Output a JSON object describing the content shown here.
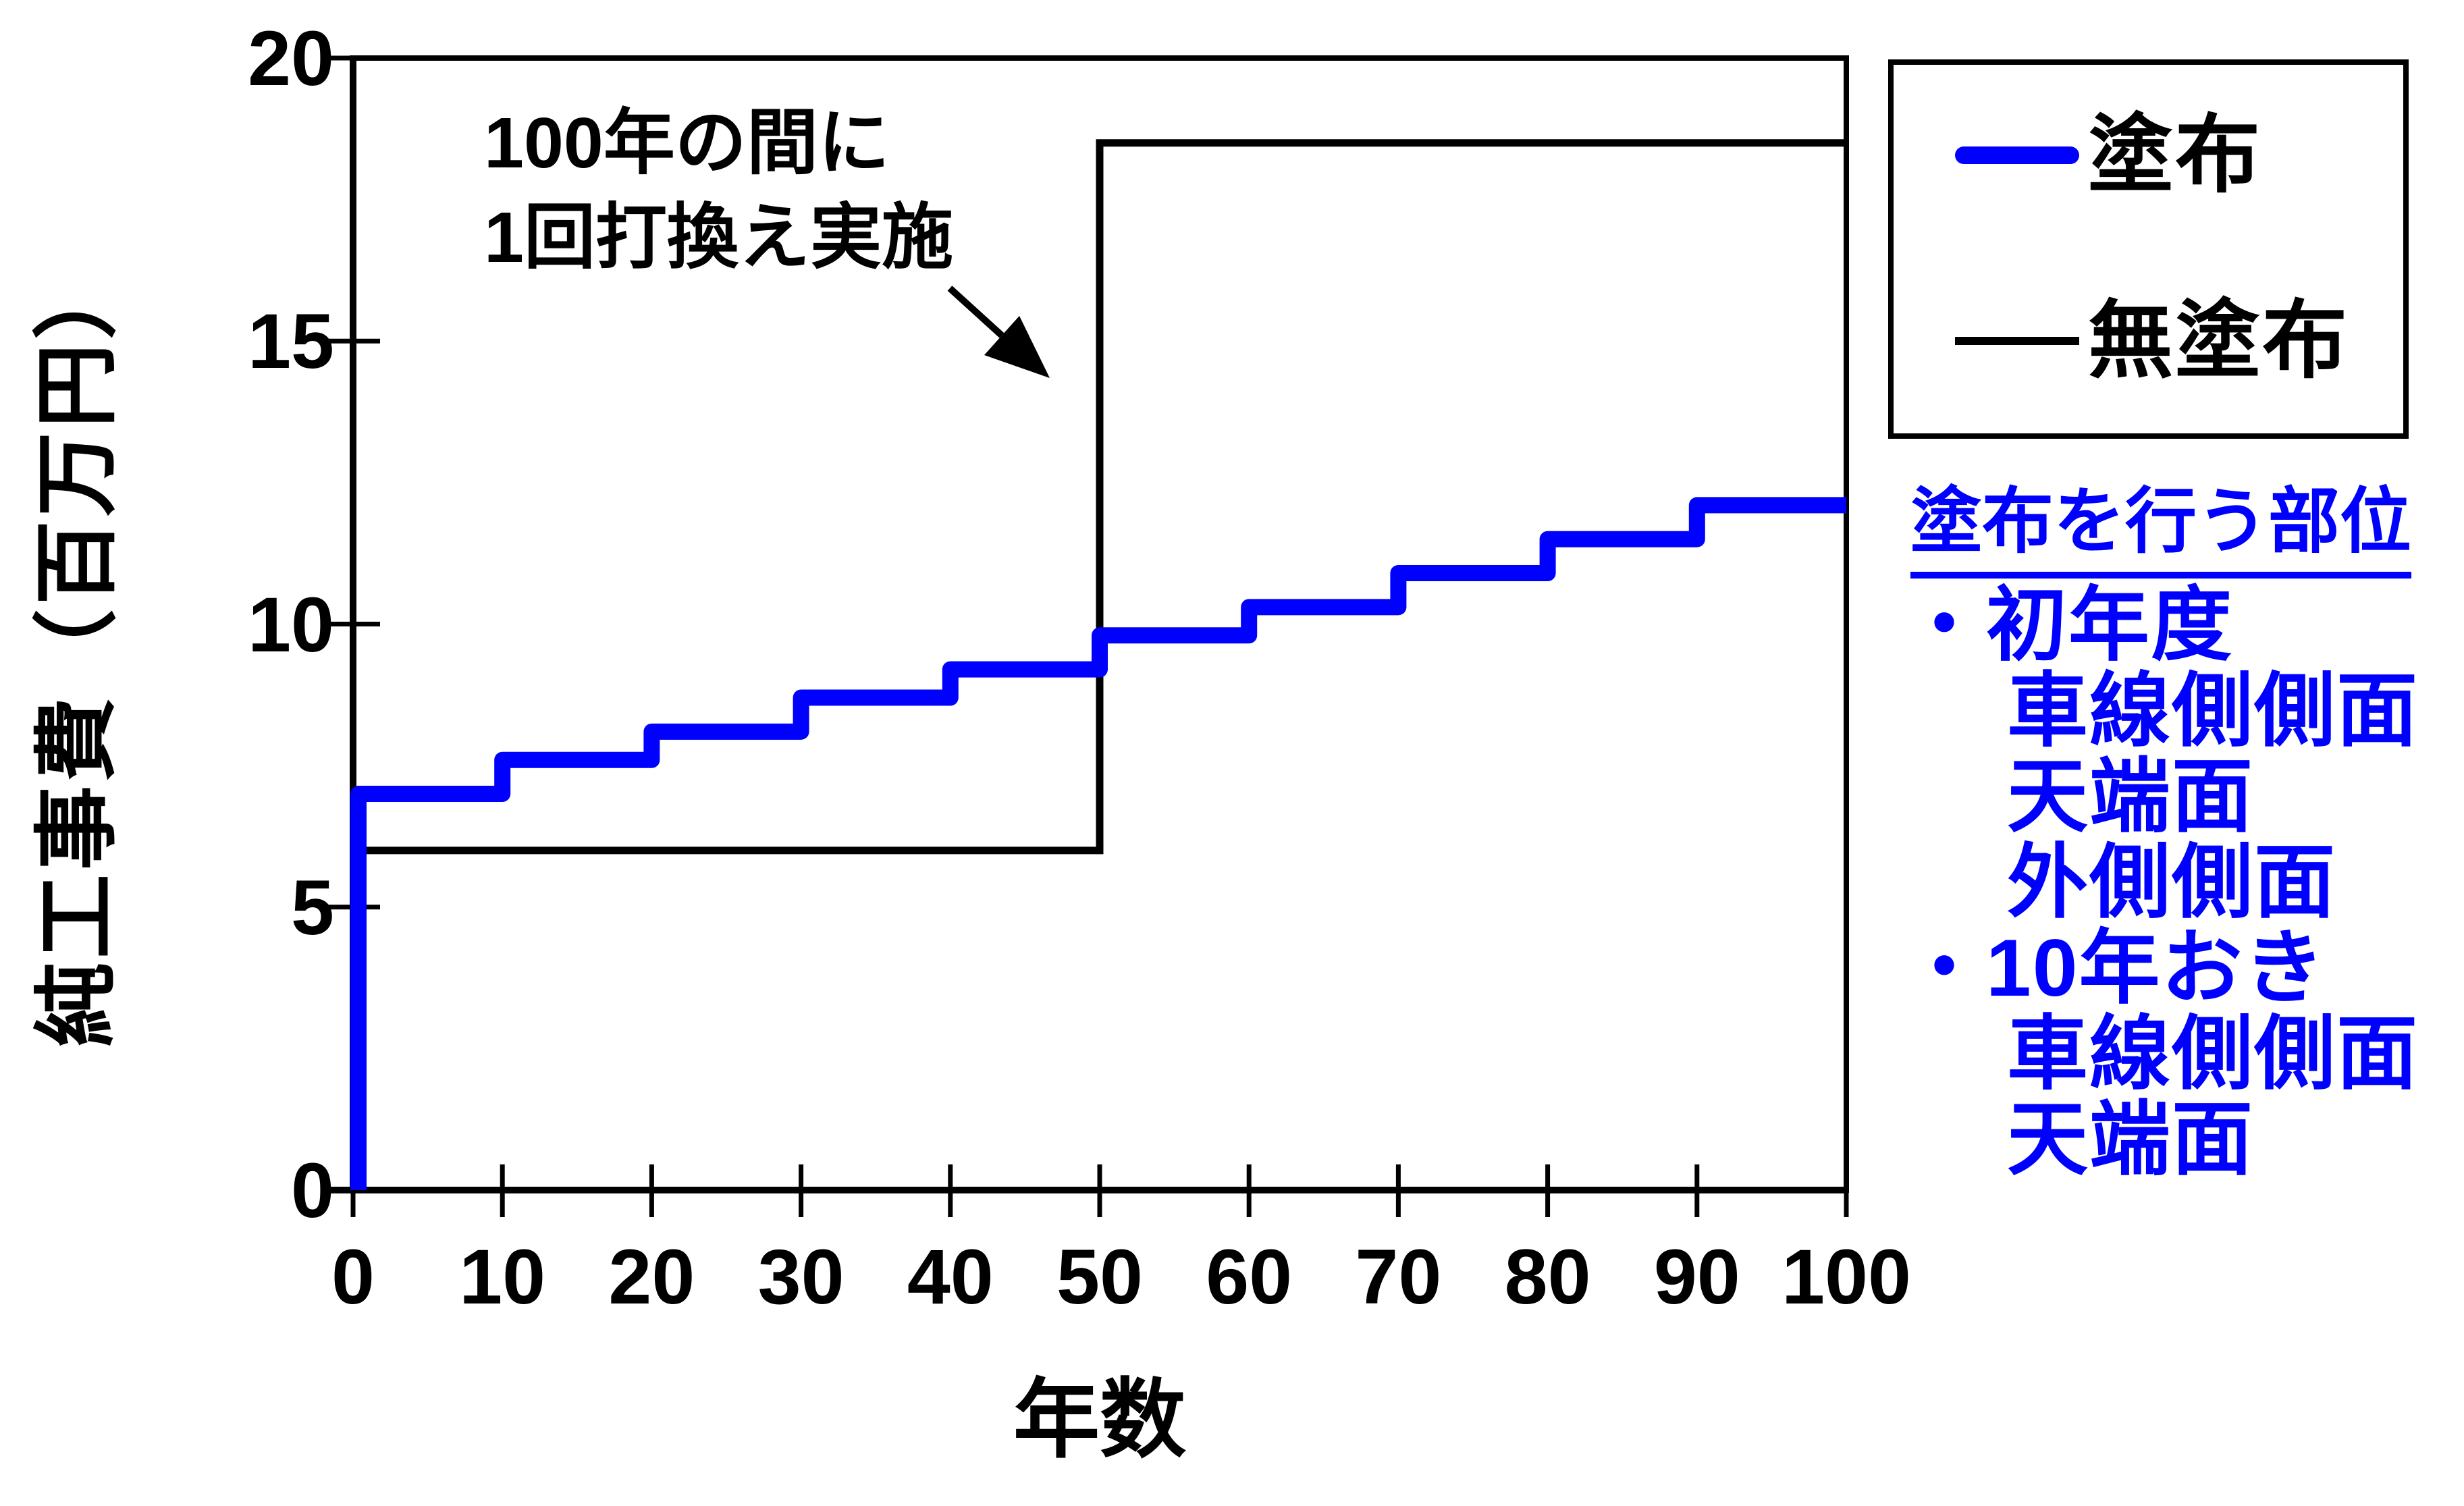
{
  "colors": {
    "series_coated": "#0000ff",
    "series_uncoated": "#000000",
    "background": "#ffffff",
    "side_note_text": "#0000ff"
  },
  "chart_data": {
    "type": "line",
    "subtype": "step",
    "xlabel": "年数",
    "ylabel": "純工事費（百万円）",
    "xlim": [
      0,
      100
    ],
    "ylim": [
      0,
      20
    ],
    "x_ticks": [
      0,
      10,
      20,
      30,
      40,
      50,
      60,
      70,
      80,
      90,
      100
    ],
    "y_ticks": [
      0,
      5,
      10,
      15,
      20
    ],
    "grid": "off",
    "legend_position": "outside-top-right",
    "x_years": [
      0,
      10,
      20,
      30,
      40,
      50,
      60,
      70,
      80,
      90,
      100
    ],
    "series": [
      {
        "name": "塗布",
        "color": "#0000ff",
        "rises_from_zero_at_year0": true,
        "step_values_per_decade": [
          7.0,
          7.6,
          8.1,
          8.7,
          9.2,
          9.8,
          10.3,
          10.9,
          11.5,
          12.1
        ]
      },
      {
        "name": "無塗布",
        "color": "#000000",
        "rises_from_zero_at_year0": false,
        "step_values_per_decade": [
          6.0,
          6.0,
          6.0,
          6.0,
          6.0,
          18.5,
          18.5,
          18.5,
          18.5,
          18.5
        ]
      }
    ]
  },
  "legend": {
    "entries": [
      {
        "label": "塗布",
        "color": "#0000ff",
        "line_style": "thick"
      },
      {
        "label": "無塗布",
        "color": "#000000",
        "line_style": "thin"
      }
    ]
  },
  "annotation": {
    "lines": [
      "100年の間に",
      "1回打換え実施"
    ],
    "arrow_target": "無塗布の50年時の打換えジャンプ"
  },
  "side_note": {
    "heading": "塗布を行う部位",
    "items": [
      {
        "text": "・初年度",
        "indent": 0
      },
      {
        "text": "車線側側面",
        "indent": 1
      },
      {
        "text": "天端面",
        "indent": 1
      },
      {
        "text": "外側側面",
        "indent": 1
      },
      {
        "text": "・10年おき",
        "indent": 0
      },
      {
        "text": "車線側側面",
        "indent": 1
      },
      {
        "text": "天端面",
        "indent": 1
      }
    ]
  }
}
